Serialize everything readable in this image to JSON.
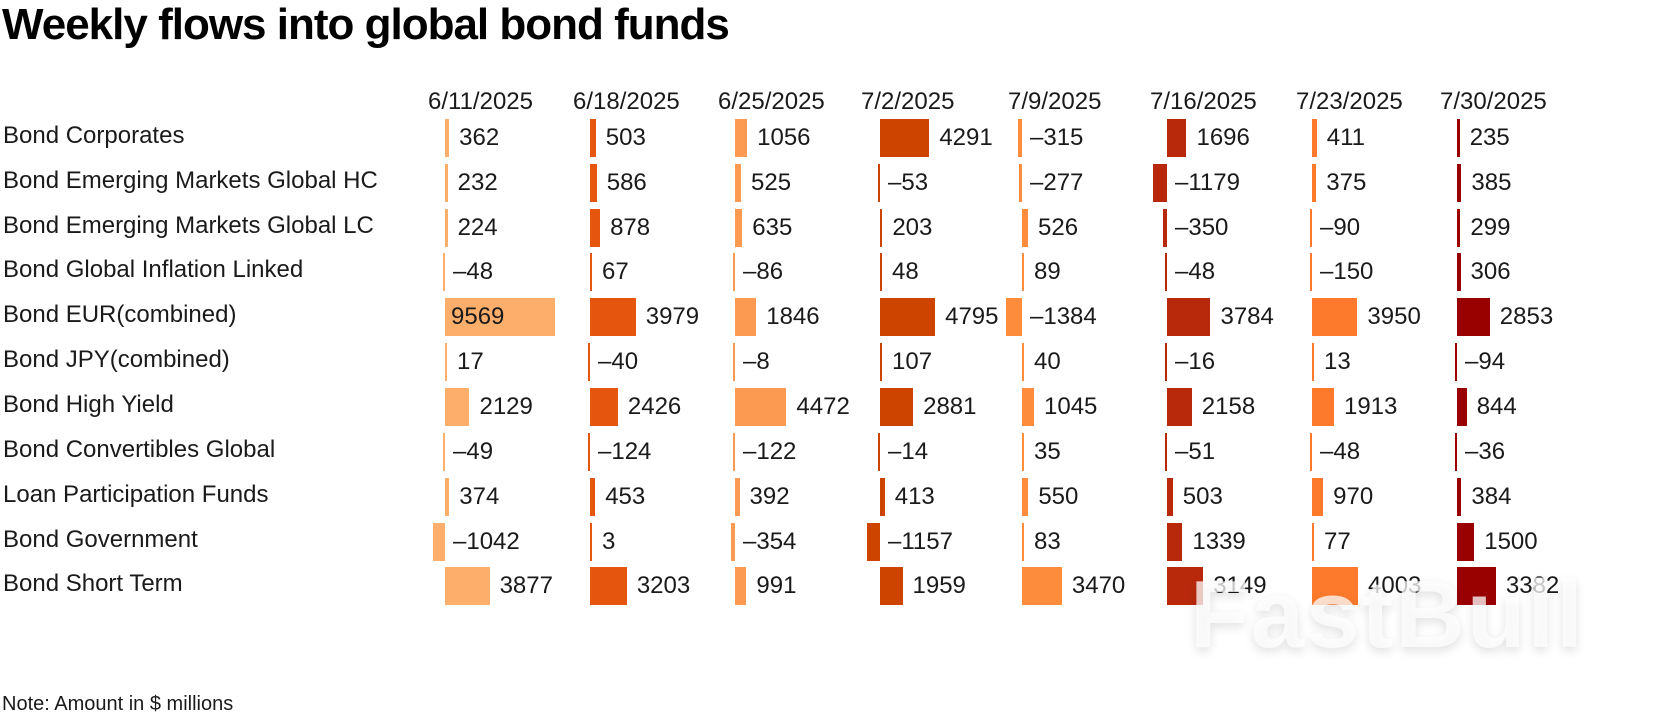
{
  "title": "Weekly flows into global bond funds",
  "note": "Note: Amount in $ millions",
  "watermark": "FastBull",
  "chart_data": {
    "type": "table",
    "title": "Weekly flows into global bond funds",
    "unit": "$ millions",
    "columns": [
      "6/11/2025",
      "6/18/2025",
      "6/25/2025",
      "7/2/2025",
      "7/9/2025",
      "7/16/2025",
      "7/23/2025",
      "7/30/2025"
    ],
    "column_colors": [
      "#fdae6b",
      "#e6550d",
      "#fd9a52",
      "#cc4400",
      "#fd8d3c",
      "#b8290c",
      "#fd7a2c",
      "#990000"
    ],
    "rows": [
      {
        "name": "Bond Corporates",
        "values": [
          362,
          503,
          1056,
          4291,
          -315,
          1696,
          411,
          235
        ]
      },
      {
        "name": "Bond Emerging Markets Global HC",
        "values": [
          232,
          586,
          525,
          -53,
          -277,
          -1179,
          375,
          385
        ]
      },
      {
        "name": "Bond Emerging Markets Global LC",
        "values": [
          224,
          878,
          635,
          203,
          526,
          -350,
          -90,
          299
        ]
      },
      {
        "name": "Bond Global Inflation Linked",
        "values": [
          -48,
          67,
          -86,
          48,
          89,
          -48,
          -150,
          306
        ]
      },
      {
        "name": "Bond EUR(combined)",
        "values": [
          9569,
          3979,
          1846,
          4795,
          -1384,
          3784,
          3950,
          2853
        ]
      },
      {
        "name": "Bond JPY(combined)",
        "values": [
          17,
          -40,
          -8,
          107,
          40,
          -16,
          13,
          -94
        ]
      },
      {
        "name": "Bond High Yield",
        "values": [
          2129,
          2426,
          4472,
          2881,
          1045,
          2158,
          1913,
          844
        ]
      },
      {
        "name": "Bond Convertibles Global",
        "values": [
          -49,
          -124,
          -122,
          -14,
          35,
          -51,
          -48,
          -36
        ]
      },
      {
        "name": "Loan Participation Funds",
        "values": [
          374,
          453,
          392,
          413,
          550,
          503,
          970,
          384
        ]
      },
      {
        "name": "Bond Government",
        "values": [
          -1042,
          3,
          -354,
          -1157,
          83,
          1339,
          77,
          1500
        ]
      },
      {
        "name": "Bond Short Term",
        "values": [
          3877,
          3203,
          991,
          1959,
          3470,
          3149,
          4003,
          3382
        ]
      }
    ],
    "value_display": [
      [
        "362",
        "503",
        "1056",
        "4291",
        "–315",
        "1696",
        "411",
        "235"
      ],
      [
        "232",
        "586",
        "525",
        "–53",
        "–277",
        "–1179",
        "375",
        "385"
      ],
      [
        "224",
        "878",
        "635",
        "203",
        "526",
        "–350",
        "–90",
        "299"
      ],
      [
        "–48",
        "67",
        "–86",
        "48",
        "89",
        "–48",
        "–150",
        "306"
      ],
      [
        "9569",
        "3979",
        "1846",
        "4795",
        "–1384",
        "3784",
        "3950",
        "2853"
      ],
      [
        "17",
        "–40",
        "–8",
        "107",
        "40",
        "–16",
        "13",
        "–94"
      ],
      [
        "2129",
        "2426",
        "4472",
        "2881",
        "1045",
        "2158",
        "1913",
        "844"
      ],
      [
        "–49",
        "–124",
        "–122",
        "–14",
        "35",
        "–51",
        "–48",
        "–36"
      ],
      [
        "374",
        "453",
        "392",
        "413",
        "550",
        "503",
        "970",
        "384"
      ],
      [
        "–1042",
        "3",
        "–354",
        "–1157",
        "83",
        "1339",
        "77",
        "1500"
      ],
      [
        "3877",
        "3203",
        "991",
        "1959",
        "3470",
        "3149",
        "4003",
        "3382"
      ]
    ]
  }
}
